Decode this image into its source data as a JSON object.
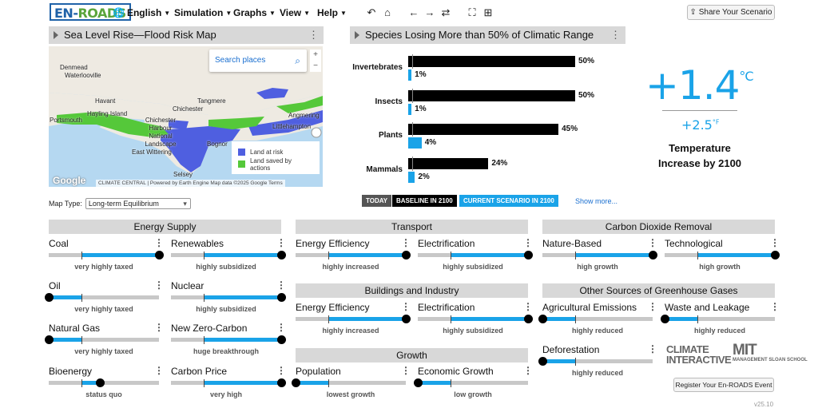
{
  "header": {
    "logo": {
      "en": "EN-",
      "roads": "ROADS"
    },
    "menus": [
      {
        "label": "English"
      },
      {
        "label": "Simulation"
      },
      {
        "label": "Graphs"
      },
      {
        "label": "View"
      },
      {
        "label": "Help"
      }
    ],
    "share_label": "Share Your Scenario"
  },
  "map_panel": {
    "title": "Sea Level Rise—Flood Risk Map",
    "search_placeholder": "Search places",
    "legend": {
      "at_risk": "Land at risk",
      "saved": "Land saved by actions"
    },
    "place_labels": [
      "Denmead",
      "Waterlooville",
      "Havant",
      "Hayling Island",
      "Portsmouth",
      "Chichester",
      "Tangmere",
      "Chichester Harbour National Landscape",
      "East Wittering",
      "Bognor",
      "Selsey",
      "Littlehampton",
      "Angmering"
    ],
    "attribution": "CLIMATE CENTRAL | Powered by Earth Engine   Map data ©2025 Google   Terms",
    "google": "Google",
    "map_type_label": "Map Type:",
    "map_type_value": "Long-term Equilibrium",
    "colors": {
      "at_risk": "#4f5fe0",
      "saved": "#55c83a"
    }
  },
  "species_panel": {
    "title": "Species Losing More than 50% of Climatic Range",
    "rows": [
      {
        "label": "Invertebrates",
        "baseline": 50,
        "current": 1,
        "baseline_text": "50%",
        "current_text": "1%"
      },
      {
        "label": "Insects",
        "baseline": 50,
        "current": 1,
        "baseline_text": "50%",
        "current_text": "1%"
      },
      {
        "label": "Plants",
        "baseline": 45,
        "current": 4,
        "baseline_text": "45%",
        "current_text": "4%"
      },
      {
        "label": "Mammals",
        "baseline": 24,
        "current": 2,
        "baseline_text": "24%",
        "current_text": "2%"
      }
    ],
    "legend": {
      "today": "TODAY",
      "baseline": "BASELINE IN 2100",
      "current": "CURRENT SCENARIO IN 2100"
    },
    "show_more": "Show more..."
  },
  "temperature": {
    "value": "+1.4",
    "unit": "°C",
    "value_f": "+2.5",
    "unit_f": "°F",
    "caption": "Temperature Increase by 2100"
  },
  "sections": {
    "energy_supply": "Energy Supply",
    "transport": "Transport",
    "cdr": "Carbon Dioxide Removal",
    "buildings": "Buildings and Industry",
    "other_gases": "Other Sources of Greenhouse Gases",
    "growth": "Growth"
  },
  "controls": [
    {
      "id": "coal",
      "name": "Coal",
      "status": "very highly taxed",
      "level": 1.0
    },
    {
      "id": "renewables",
      "name": "Renewables",
      "status": "highly subsidized",
      "level": 1.0
    },
    {
      "id": "oil",
      "name": "Oil",
      "status": "very highly taxed",
      "level": 0.0
    },
    {
      "id": "nuclear",
      "name": "Nuclear",
      "status": "highly subsidized",
      "level": 1.0
    },
    {
      "id": "natural-gas",
      "name": "Natural Gas",
      "status": "very highly taxed",
      "level": 0.0
    },
    {
      "id": "new-zero-carbon",
      "name": "New Zero-Carbon",
      "status": "huge breakthrough",
      "level": 1.0
    },
    {
      "id": "bioenergy",
      "name": "Bioenergy",
      "status": "status quo",
      "level": 0.47
    },
    {
      "id": "carbon-price",
      "name": "Carbon Price",
      "status": "very high",
      "level": 1.0
    },
    {
      "id": "transport-efficiency",
      "name": "Energy Efficiency",
      "status": "highly increased",
      "level": 1.0
    },
    {
      "id": "transport-electrification",
      "name": "Electrification",
      "status": "highly subsidized",
      "level": 1.0
    },
    {
      "id": "buildings-efficiency",
      "name": "Energy Efficiency",
      "status": "highly increased",
      "level": 1.0
    },
    {
      "id": "buildings-electrification",
      "name": "Electrification",
      "status": "highly subsidized",
      "level": 1.0
    },
    {
      "id": "population",
      "name": "Population",
      "status": "lowest growth",
      "level": 0.0
    },
    {
      "id": "economic-growth",
      "name": "Economic Growth",
      "status": "low growth",
      "level": 0.0
    },
    {
      "id": "nature-based",
      "name": "Nature-Based",
      "status": "high growth",
      "level": 1.0
    },
    {
      "id": "technological",
      "name": "Technological",
      "status": "high growth",
      "level": 1.0
    },
    {
      "id": "agricultural",
      "name": "Agricultural Emissions",
      "status": "highly reduced",
      "level": 0.0
    },
    {
      "id": "waste",
      "name": "Waste and Leakage",
      "status": "highly reduced",
      "level": 0.0
    },
    {
      "id": "deforestation",
      "name": "Deforestation",
      "status": "highly reduced",
      "level": 0.0
    }
  ],
  "footer": {
    "ci": "CLIMATE INTERACTIVE",
    "mit": "MIT",
    "mit_sub": "MANAGEMENT SLOAN SCHOOL",
    "register": "Register Your En-ROADS Event",
    "version": "v25.10"
  }
}
